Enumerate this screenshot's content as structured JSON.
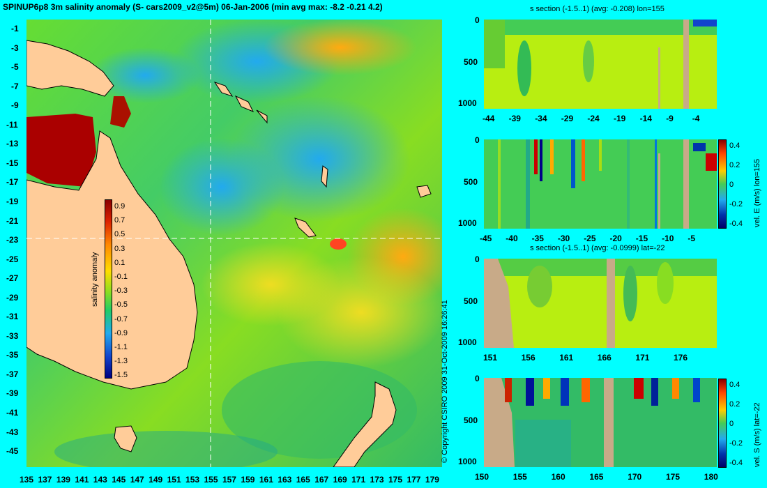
{
  "map": {
    "title": "SPINUP6p8 3m salinity anomaly (S- cars2009_v2@5m) 06-Jan-2006 (min avg max: -8.2 -0.21 4.2)",
    "lat_ticks": [
      "-1",
      "-3",
      "-5",
      "-7",
      "-9",
      "-11",
      "-13",
      "-15",
      "-17",
      "-19",
      "-21",
      "-23",
      "-25",
      "-27",
      "-29",
      "-31",
      "-33",
      "-35",
      "-37",
      "-39",
      "-41",
      "-43",
      "-45"
    ],
    "lon_ticks": [
      "135",
      "137",
      "139",
      "141",
      "143",
      "145",
      "147",
      "149",
      "151",
      "153",
      "155",
      "157",
      "159",
      "161",
      "163",
      "165",
      "167",
      "169",
      "171",
      "173",
      "175",
      "177",
      "179"
    ],
    "colorbar": {
      "label": "salinity anomaly",
      "ticks": [
        "0.9",
        "0.7",
        "0.5",
        "0.3",
        "0.1",
        "-0.1",
        "-0.3",
        "-0.5",
        "-0.7",
        "-0.9",
        "-1.1",
        "-1.3",
        "-1.5"
      ]
    }
  },
  "copyright": "© Copyright CSIRO 2009   31-Oct-2009 16:26:41",
  "panels": [
    {
      "title": "s section (-1.5..1) (avg: -0.208) lon=155",
      "y_ticks": [
        "0",
        "500",
        "1000"
      ],
      "x_ticks": [
        "-44",
        "-39",
        "-34",
        "-29",
        "-24",
        "-19",
        "-14",
        "-9",
        "-4"
      ]
    },
    {
      "title": "",
      "y_ticks": [
        "0",
        "500",
        "1000"
      ],
      "x_ticks": [
        "-45",
        "-40",
        "-35",
        "-30",
        "-25",
        "-20",
        "-15",
        "-10",
        "-5"
      ],
      "colorbar_label": "vel. E (m/s) lon=155",
      "cb_ticks": [
        "0.4",
        "0.2",
        "0",
        "-0.2",
        "-0.4"
      ]
    },
    {
      "title": "s section (-1.5..1) (avg: -0.0999) lat=-22",
      "y_ticks": [
        "0",
        "500",
        "1000"
      ],
      "x_ticks": [
        "151",
        "156",
        "161",
        "166",
        "171",
        "176"
      ]
    },
    {
      "title": "",
      "y_ticks": [
        "0",
        "500",
        "1000"
      ],
      "x_ticks": [
        "150",
        "155",
        "160",
        "165",
        "170",
        "175",
        "180"
      ],
      "colorbar_label": "vel. S (m/s) lat=-22",
      "cb_ticks": [
        "0.4",
        "0.2",
        "0",
        "-0.2",
        "-0.4"
      ]
    }
  ],
  "colors": {
    "background": "#00ffff",
    "land": "#ffcc99",
    "section_land": "#c8aa88"
  },
  "chart_data": [
    {
      "type": "heatmap",
      "title": "SPINUP6p8 3m salinity anomaly (S- cars2009_v2@5m) 06-Jan-2006 (min avg max: -8.2 -0.21 4.2)",
      "xlabel": "",
      "ylabel": "",
      "xlim": [
        135,
        180
      ],
      "ylim": [
        -45,
        0
      ],
      "colorbar_range": [
        -1.5,
        1
      ],
      "colorbar_label": "salinity anomaly",
      "summary": {
        "min": -8.2,
        "avg": -0.21,
        "max": 4.2
      }
    },
    {
      "type": "heatmap",
      "title": "s section (-1.5..1) (avg: -0.208) lon=155",
      "xlim": [
        -45,
        0
      ],
      "ylim": [
        1050,
        0
      ],
      "summary": {
        "avg": -0.208
      }
    },
    {
      "type": "heatmap",
      "title": "",
      "colorbar_label": "vel. E (m/s) lon=155",
      "xlim": [
        -45,
        0
      ],
      "ylim": [
        1050,
        0
      ],
      "colorbar_range": [
        -0.4,
        0.4
      ]
    },
    {
      "type": "heatmap",
      "title": "s section (-1.5..1) (avg: -0.0999) lat=-22",
      "xlim": [
        150,
        180
      ],
      "ylim": [
        1050,
        0
      ],
      "summary": {
        "avg": -0.0999
      }
    },
    {
      "type": "heatmap",
      "title": "",
      "colorbar_label": "vel. S (m/s) lat=-22",
      "xlim": [
        150,
        180
      ],
      "ylim": [
        1050,
        0
      ],
      "colorbar_range": [
        -0.4,
        0.4
      ]
    }
  ]
}
